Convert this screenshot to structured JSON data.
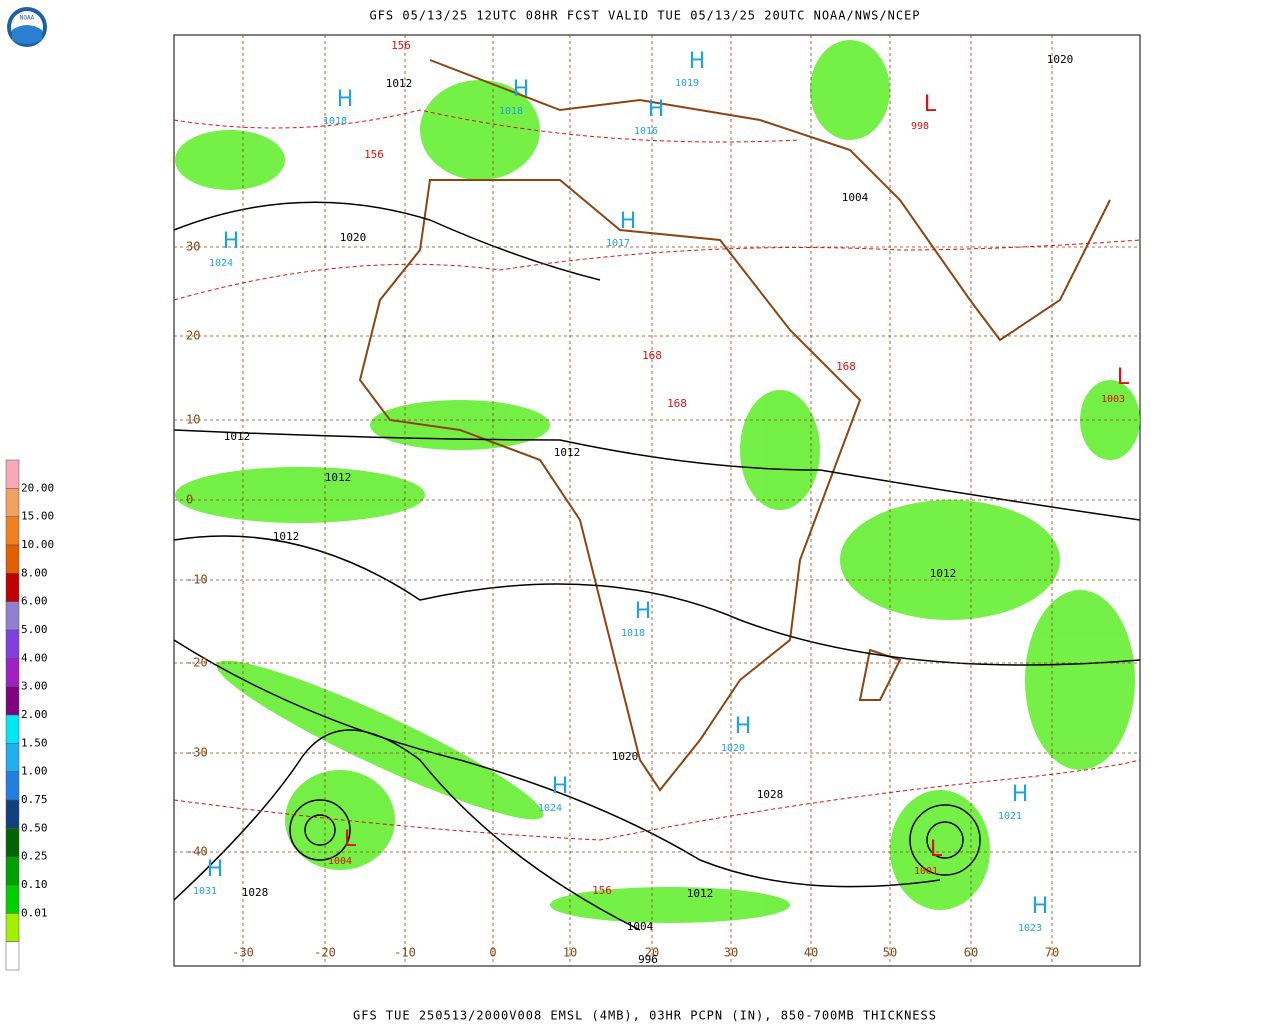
{
  "header": {
    "title": "GFS 05/13/25 12UTC 08HR FCST VALID TUE 05/13/25 20UTC NOAA/NWS/NCEP"
  },
  "footer": {
    "caption": "GFS TUE 250513/2000V008 EMSL (4MB), 03HR PCPN (IN), 850-700MB THICKNESS"
  },
  "logo": "NOAA",
  "legend": {
    "labels": [
      "20.00",
      "15.00",
      "10.00",
      "8.00",
      "6.00",
      "5.00",
      "4.00",
      "3.00",
      "2.00",
      "1.50",
      "1.00",
      "0.75",
      "0.50",
      "0.25",
      "0.10",
      "0.01"
    ],
    "colors": [
      "#f8a8b8",
      "#f0a060",
      "#f08020",
      "#e06000",
      "#c00000",
      "#9080d0",
      "#8040e0",
      "#a020c0",
      "#800080",
      "#00e8f8",
      "#20b0f0",
      "#2080e0",
      "#104080",
      "#006400",
      "#00a000",
      "#00d000",
      "#a0f000",
      "#ffffff"
    ]
  },
  "map": {
    "lat_labels": [
      "30",
      "20",
      "10",
      "0",
      "-10",
      "-20",
      "-30",
      "-40"
    ],
    "lon_labels": [
      "-30",
      "-20",
      "-10",
      "0",
      "10",
      "20",
      "30",
      "40",
      "50",
      "60",
      "70"
    ],
    "centers": [
      {
        "symbol": "H",
        "value": "1018"
      },
      {
        "symbol": "H",
        "value": "1024"
      },
      {
        "symbol": "H",
        "value": "1018"
      },
      {
        "symbol": "H",
        "value": "1019"
      },
      {
        "symbol": "H",
        "value": "1016"
      },
      {
        "symbol": "H",
        "value": "1017"
      },
      {
        "symbol": "H",
        "value": "1018"
      },
      {
        "symbol": "H",
        "value": "1020"
      },
      {
        "symbol": "H",
        "value": "1024"
      },
      {
        "symbol": "H",
        "value": "1031"
      },
      {
        "symbol": "H",
        "value": "1023"
      },
      {
        "symbol": "H",
        "value": "1021"
      },
      {
        "symbol": "L",
        "value": "1004"
      },
      {
        "symbol": "L",
        "value": "1001"
      },
      {
        "symbol": "L",
        "value": "998"
      },
      {
        "symbol": "L",
        "value": "1003"
      }
    ],
    "isobar_labels": [
      "1012",
      "1020",
      "1012",
      "1012",
      "1012",
      "1012",
      "1020",
      "1020",
      "1028",
      "1028",
      "1004",
      "1004",
      "996",
      "1012",
      "1012"
    ],
    "thickness_labels": [
      "156",
      "156",
      "168",
      "168",
      "156",
      "168"
    ]
  }
}
